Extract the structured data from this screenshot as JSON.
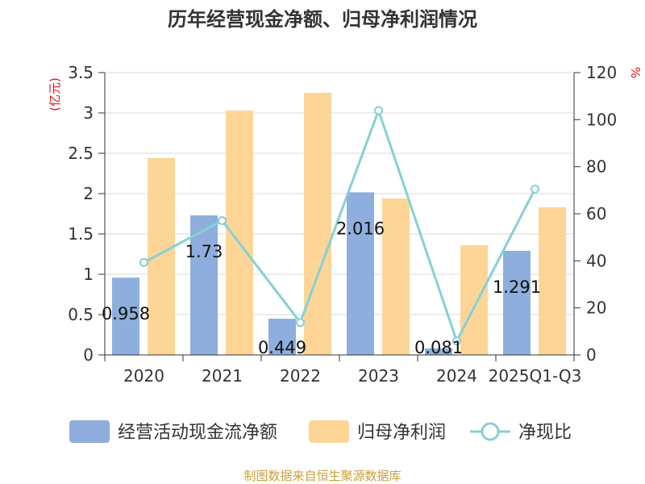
{
  "chart_data": {
    "type": "bar",
    "title": "历年经营现金净额、归母净利润情况",
    "categories": [
      "2020",
      "2021",
      "2022",
      "2023",
      "2024",
      "2025Q1-Q3"
    ],
    "series": [
      {
        "name": "经营活动现金流净额",
        "type": "bar",
        "axis": "left",
        "color": "#8eaedd",
        "values": [
          0.958,
          1.73,
          0.449,
          2.016,
          0.081,
          1.291
        ],
        "labels": [
          "0.958",
          "1.73",
          "0.449",
          "2.016",
          "0.081",
          "1.291"
        ]
      },
      {
        "name": "归母净利润",
        "type": "bar",
        "axis": "left",
        "color": "#fdd597",
        "values": [
          2.44,
          3.03,
          3.25,
          1.94,
          1.36,
          1.83
        ]
      },
      {
        "name": "净现比",
        "type": "line",
        "axis": "right",
        "color": "#86d0d6",
        "values": [
          39.3,
          57.1,
          13.8,
          103.9,
          5.9,
          70.5
        ]
      }
    ],
    "y_left": {
      "label": "(亿元)",
      "min": 0,
      "max": 3.5,
      "ticks": [
        "0",
        "0.5",
        "1",
        "1.5",
        "2",
        "2.5",
        "3",
        "3.5"
      ]
    },
    "y_right": {
      "label": "%",
      "min": 0,
      "max": 120,
      "ticks": [
        "0",
        "20",
        "40",
        "60",
        "80",
        "100",
        "120"
      ]
    },
    "legend_position": "bottom",
    "grid": true
  },
  "footer": {
    "source": "制图数据来自恒生聚源数据库"
  }
}
